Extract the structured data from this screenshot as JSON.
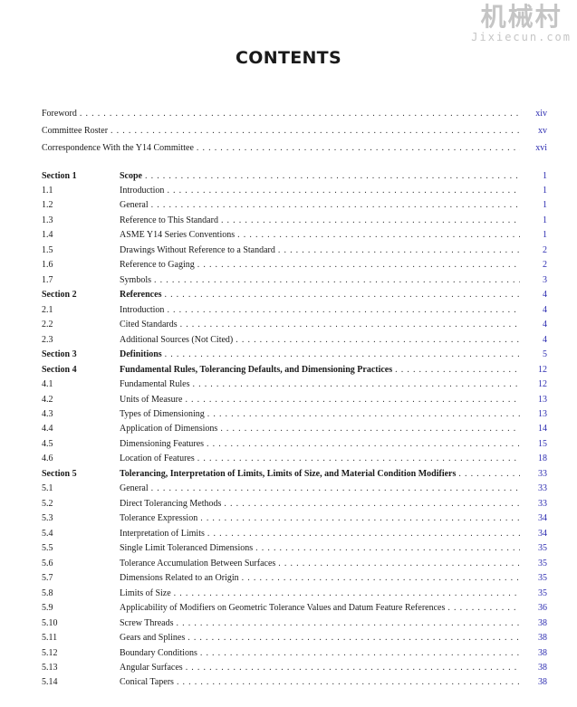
{
  "title": "CONTENTS",
  "front": [
    {
      "label": "Foreword",
      "page": "xiv"
    },
    {
      "label": "Committee Roster",
      "page": "xv"
    },
    {
      "label": "Correspondence With the Y14 Committee",
      "page": "xvi"
    }
  ],
  "entries": [
    {
      "num": "Section 1",
      "label": "Scope",
      "page": "1",
      "bold": true
    },
    {
      "num": "1.1",
      "label": "Introduction",
      "page": "1"
    },
    {
      "num": "1.2",
      "label": "General",
      "page": "1"
    },
    {
      "num": "1.3",
      "label": "Reference to This Standard",
      "page": "1"
    },
    {
      "num": "1.4",
      "label": "ASME Y14 Series Conventions",
      "page": "1"
    },
    {
      "num": "1.5",
      "label": "Drawings Without Reference to a Standard",
      "page": "2"
    },
    {
      "num": "1.6",
      "label": "Reference to Gaging",
      "page": "2"
    },
    {
      "num": "1.7",
      "label": "Symbols",
      "page": "3"
    },
    {
      "num": "Section 2",
      "label": "References",
      "page": "4",
      "bold": true
    },
    {
      "num": "2.1",
      "label": "Introduction",
      "page": "4"
    },
    {
      "num": "2.2",
      "label": "Cited Standards",
      "page": "4"
    },
    {
      "num": "2.3",
      "label": "Additional Sources (Not Cited)",
      "page": "4"
    },
    {
      "num": "Section 3",
      "label": "Definitions",
      "page": "5",
      "bold": true
    },
    {
      "num": "Section 4",
      "label": "Fundamental Rules, Tolerancing Defaults, and Dimensioning Practices",
      "page": "12",
      "bold": true
    },
    {
      "num": "4.1",
      "label": "Fundamental Rules",
      "page": "12"
    },
    {
      "num": "4.2",
      "label": "Units of Measure",
      "page": "13"
    },
    {
      "num": "4.3",
      "label": "Types of Dimensioning",
      "page": "13"
    },
    {
      "num": "4.4",
      "label": "Application of Dimensions",
      "page": "14"
    },
    {
      "num": "4.5",
      "label": "Dimensioning Features",
      "page": "15"
    },
    {
      "num": "4.6",
      "label": "Location of Features",
      "page": "18"
    },
    {
      "num": "Section 5",
      "label": "Tolerancing, Interpretation of Limits, Limits of Size, and Material Condition Modifiers",
      "page": "33",
      "bold": true
    },
    {
      "num": "5.1",
      "label": "General",
      "page": "33"
    },
    {
      "num": "5.2",
      "label": "Direct Tolerancing Methods",
      "page": "33"
    },
    {
      "num": "5.3",
      "label": "Tolerance Expression",
      "page": "34"
    },
    {
      "num": "5.4",
      "label": "Interpretation of Limits",
      "page": "34"
    },
    {
      "num": "5.5",
      "label": "Single Limit Toleranced Dimensions",
      "page": "35"
    },
    {
      "num": "5.6",
      "label": "Tolerance Accumulation Between Surfaces",
      "page": "35"
    },
    {
      "num": "5.7",
      "label": "Dimensions Related to an Origin",
      "page": "35"
    },
    {
      "num": "5.8",
      "label": "Limits of Size",
      "page": "35"
    },
    {
      "num": "5.9",
      "label": "Applicability of Modifiers on Geometric Tolerance Values and Datum Feature References",
      "page": "36"
    },
    {
      "num": "5.10",
      "label": "Screw Threads",
      "page": "38"
    },
    {
      "num": "5.11",
      "label": "Gears and Splines",
      "page": "38"
    },
    {
      "num": "5.12",
      "label": "Boundary Conditions",
      "page": "38"
    },
    {
      "num": "5.13",
      "label": "Angular Surfaces",
      "page": "38"
    },
    {
      "num": "5.14",
      "label": "Conical Tapers",
      "page": "38"
    }
  ],
  "watermark": {
    "cn": "机械村",
    "en": "Jixiecun.com"
  },
  "colors": {
    "page_link": "#2b2bb0"
  }
}
